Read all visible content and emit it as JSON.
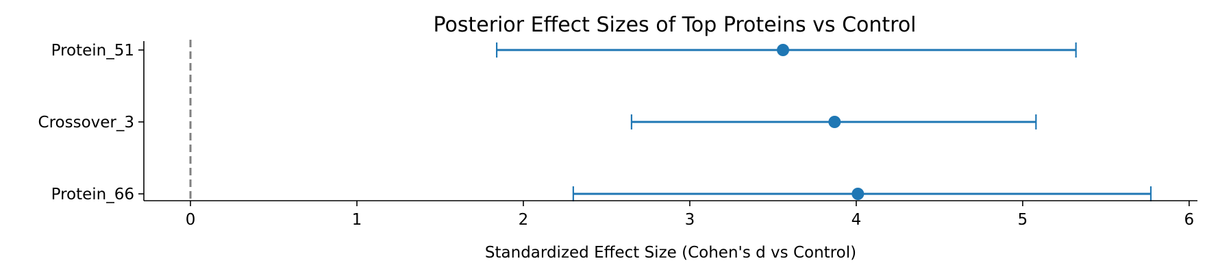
{
  "chart_data": {
    "type": "errorbar",
    "title": "Posterior Effect Sizes of Top Proteins vs Control",
    "xlabel": "Standardized Effect Size (Cohen's d vs Control)",
    "ylabel": "",
    "xlim": [
      -0.28,
      6.05
    ],
    "xticks": [
      0,
      1,
      2,
      3,
      4,
      5,
      6
    ],
    "reference_line": {
      "x": 0,
      "style": "dashed",
      "color": "#808080"
    },
    "grid": false,
    "color": "#1f77b4",
    "categories": [
      "Protein_51",
      "Crossover_3",
      "Protein_66"
    ],
    "points": [
      {
        "label": "Protein_51",
        "estimate": 3.56,
        "lower": 1.84,
        "upper": 5.32
      },
      {
        "label": "Crossover_3",
        "estimate": 3.87,
        "lower": 2.65,
        "upper": 5.08
      },
      {
        "label": "Protein_66",
        "estimate": 4.01,
        "lower": 2.3,
        "upper": 5.77
      }
    ]
  }
}
